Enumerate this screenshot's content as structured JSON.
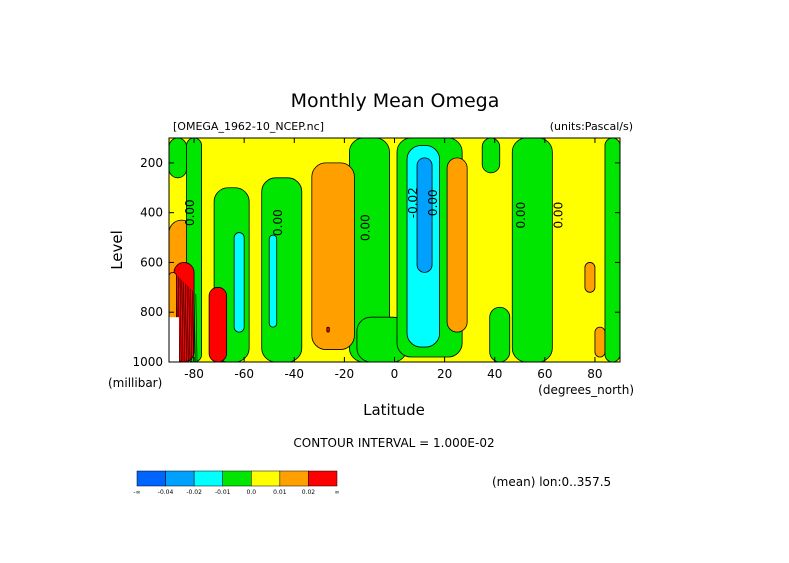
{
  "chart_data": {
    "type": "heatmap",
    "title": "Monthly Mean Omega",
    "file_label": "[OMEGA_1962-10_NCEP.nc]",
    "units_label": "(units:Pascal/s)",
    "xlabel": "Latitude",
    "x_units": "(degrees_north)",
    "ylabel": "Level",
    "y_units": "(millibar)",
    "xlim": [
      -90,
      90
    ],
    "ylim": [
      1000,
      100
    ],
    "y_inverted": true,
    "x_ticks": [
      -80,
      -60,
      -40,
      -20,
      0,
      20,
      40,
      60,
      80
    ],
    "x_tick_labels": [
      "-80",
      "-60",
      "-40",
      "-20",
      "0",
      "20",
      "40",
      "60",
      "80"
    ],
    "y_ticks": [
      200,
      400,
      600,
      800,
      1000
    ],
    "y_tick_labels": [
      "200",
      "400",
      "600",
      "800",
      "1000"
    ],
    "contour_interval_text": "CONTOUR INTERVAL = 1.000E-02",
    "mean_text": "(mean) lon:0..357.5",
    "contour_labels": [
      {
        "text": "0.00",
        "lat": -80,
        "lev": 400
      },
      {
        "text": "0.00",
        "lat": -45,
        "lev": 440
      },
      {
        "text": "0.00",
        "lat": -10,
        "lev": 460
      },
      {
        "text": "-0.02",
        "lat": 9,
        "lev": 360
      },
      {
        "text": "0.00",
        "lat": 17,
        "lev": 360
      },
      {
        "text": "0.00",
        "lat": 52,
        "lev": 410
      },
      {
        "text": "0.00",
        "lat": 67,
        "lev": 410
      }
    ],
    "colorbar": {
      "colors": [
        "#0064ff",
        "#00a0ff",
        "#00ffff",
        "#00e600",
        "#ffff00",
        "#ffa000",
        "#ff0000"
      ],
      "labels": [
        "-∞",
        "-0.04",
        "-0.02",
        "-0.01",
        "0.0",
        "0.01",
        "0.02",
        "∞"
      ]
    },
    "regions": [
      {
        "level": "pos1",
        "lat": [
          -90,
          -80
        ],
        "lev": [
          430,
          720
        ]
      },
      {
        "level": "neg1",
        "lat": [
          -90,
          -83
        ],
        "lev": [
          100,
          260
        ]
      },
      {
        "level": "neg1",
        "lat": [
          -83,
          -77
        ],
        "lev": [
          100,
          1000
        ]
      },
      {
        "level": "neg1",
        "lat": [
          -72,
          -58
        ],
        "lev": [
          300,
          1000
        ]
      },
      {
        "level": "neg2",
        "lat": [
          -64,
          -60
        ],
        "lev": [
          480,
          880
        ]
      },
      {
        "level": "neg1",
        "lat": [
          -53,
          -37
        ],
        "lev": [
          260,
          1000
        ]
      },
      {
        "level": "neg2",
        "lat": [
          -50,
          -47
        ],
        "lev": [
          490,
          860
        ]
      },
      {
        "level": "neg1",
        "lat": [
          -18,
          -2
        ],
        "lev": [
          100,
          1000
        ]
      },
      {
        "level": "neg1",
        "lat": [
          -15,
          5
        ],
        "lev": [
          820,
          1000
        ]
      },
      {
        "level": "pos1",
        "lat": [
          -33,
          -16
        ],
        "lev": [
          200,
          950
        ]
      },
      {
        "level": "pos2",
        "lat": [
          -27,
          -26
        ],
        "lev": [
          860,
          880
        ]
      },
      {
        "level": "neg1",
        "lat": [
          1,
          27
        ],
        "lev": [
          100,
          980
        ]
      },
      {
        "level": "neg2",
        "lat": [
          5,
          18
        ],
        "lev": [
          130,
          940
        ]
      },
      {
        "level": "neg3",
        "lat": [
          9,
          15
        ],
        "lev": [
          180,
          640
        ]
      },
      {
        "level": "pos1",
        "lat": [
          21,
          29
        ],
        "lev": [
          180,
          880
        ]
      },
      {
        "level": "neg1",
        "lat": [
          35,
          42
        ],
        "lev": [
          100,
          240
        ]
      },
      {
        "level": "neg1",
        "lat": [
          38,
          46
        ],
        "lev": [
          780,
          1000
        ]
      },
      {
        "level": "neg1",
        "lat": [
          47,
          63
        ],
        "lev": [
          100,
          1000
        ]
      },
      {
        "level": "pos1",
        "lat": [
          76,
          80
        ],
        "lev": [
          600,
          720
        ]
      },
      {
        "level": "pos1",
        "lat": [
          80,
          84
        ],
        "lev": [
          860,
          980
        ]
      },
      {
        "level": "neg1",
        "lat": [
          84,
          90
        ],
        "lev": [
          100,
          1000
        ]
      }
    ],
    "south_strong": [
      {
        "level": "pos2",
        "lat": [
          -88,
          -80
        ],
        "lev": [
          600,
          1000
        ]
      },
      {
        "level": "pos1",
        "lat": [
          -90,
          -87
        ],
        "lev": [
          640,
          1000
        ]
      },
      {
        "level": "pos2",
        "lat": [
          -74,
          -67
        ],
        "lev": [
          700,
          1000
        ]
      }
    ]
  }
}
